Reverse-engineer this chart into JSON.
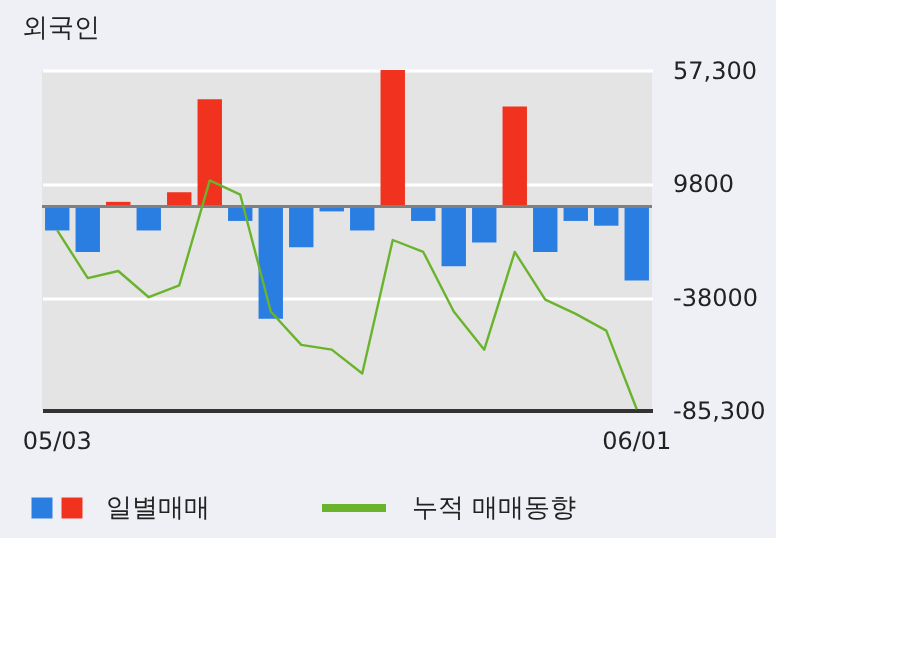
{
  "chart_data": {
    "type": "bar",
    "title": "외국인",
    "categories": [
      "05/03",
      null,
      null,
      null,
      null,
      null,
      null,
      null,
      null,
      null,
      null,
      null,
      null,
      null,
      null,
      null,
      null,
      null,
      null,
      "06/01"
    ],
    "series": [
      {
        "name": "일별매매",
        "colors": [
          "#2a7de1",
          "#2a7de1",
          "#f0321e",
          "#2a7de1",
          "#f0321e",
          "#f0321e",
          "#2a7de1",
          "#2a7de1",
          "#2a7de1",
          "#2a7de1",
          "#2a7de1",
          "#f0321e",
          "#2a7de1",
          "#2a7de1",
          "#2a7de1",
          "#f0321e",
          "#2a7de1",
          "#2a7de1",
          "#2a7de1",
          "#2a7de1"
        ],
        "values": [
          -10000,
          -19000,
          2000,
          -10000,
          6000,
          45000,
          -6000,
          -47000,
          -17000,
          -2000,
          -10000,
          57300,
          -6000,
          -25000,
          -15000,
          42000,
          -19000,
          -6000,
          -8000,
          -31000
        ]
      },
      {
        "name": "누적 매매동향",
        "type": "line",
        "color": "#6ab42d",
        "values": [
          -10000,
          -30000,
          -27000,
          -38000,
          -33000,
          11000,
          5000,
          -44000,
          -58000,
          -60000,
          -70000,
          -14000,
          -19000,
          -44000,
          -60000,
          -19000,
          -39000,
          -45000,
          -52000,
          -85000
        ]
      }
    ],
    "ylim": [
      -85300,
      57300
    ],
    "yticks": [
      {
        "value": 57300,
        "label": "57,300"
      },
      9800,
      -38000,
      {
        "value": -85300,
        "label": "-85,300"
      }
    ],
    "ref_lines": [
      {
        "axis": "y",
        "value": 0,
        "color": "#808080"
      }
    ],
    "grid": "y",
    "legend": "bottom"
  }
}
